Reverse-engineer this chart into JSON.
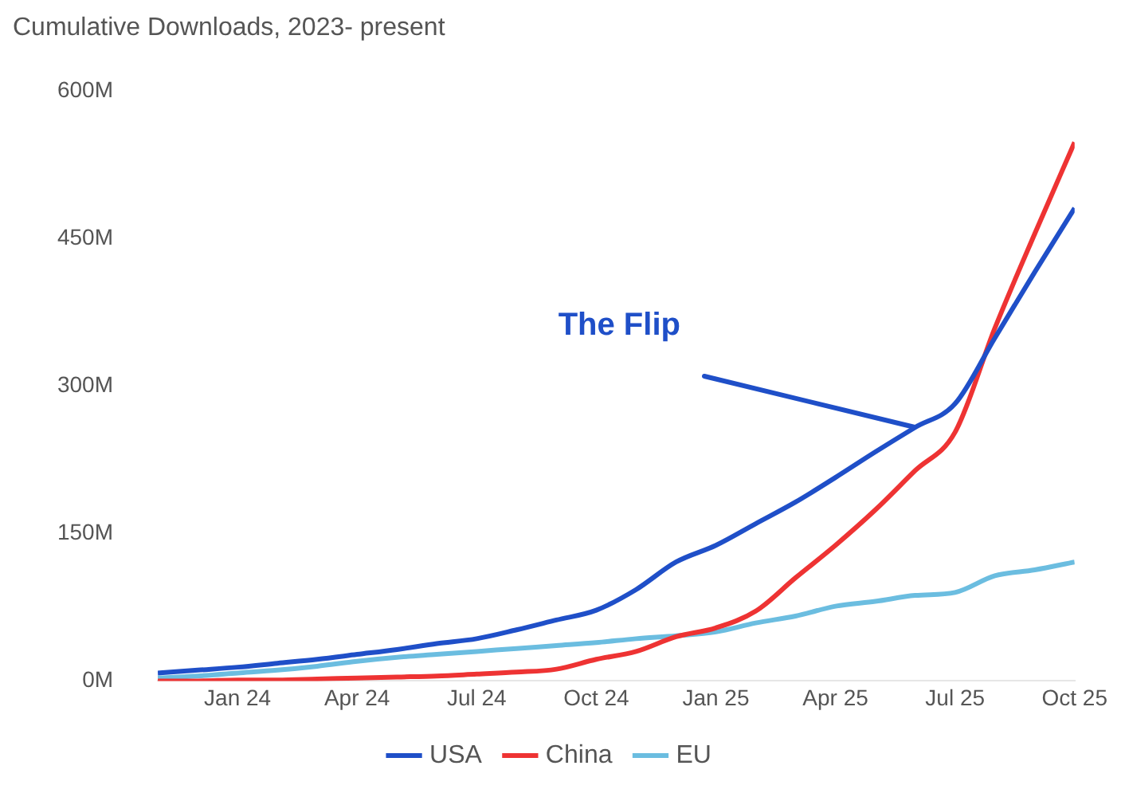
{
  "chart_data": {
    "type": "line",
    "title": "Cumulative Downloads, 2023- present",
    "x": [
      "2023-11",
      "2023-12",
      "2024-01",
      "2024-02",
      "2024-03",
      "2024-04",
      "2024-05",
      "2024-06",
      "2024-07",
      "2024-08",
      "2024-09",
      "2024-10",
      "2024-11",
      "2024-12",
      "2025-01",
      "2025-02",
      "2025-03",
      "2025-04",
      "2025-05",
      "2025-06",
      "2025-07",
      "2025-08",
      "2025-09",
      "2025-10"
    ],
    "series": [
      {
        "name": "USA",
        "color": "#1f4fc8",
        "values": [
          8,
          11,
          14,
          18,
          22,
          27,
          32,
          38,
          43,
          52,
          62,
          72,
          93,
          121,
          138,
          160,
          182,
          207,
          233,
          258,
          282,
          349,
          416,
          481
        ]
      },
      {
        "name": "China",
        "color": "#ee3333",
        "values": [
          0,
          0,
          1,
          1,
          2,
          3,
          4,
          5,
          7,
          9,
          12,
          22,
          30,
          45,
          54,
          71,
          105,
          138,
          174,
          214,
          253,
          359,
          455,
          548
        ]
      },
      {
        "name": "EU",
        "color": "#6bbde0",
        "values": [
          3,
          5,
          8,
          11,
          15,
          20,
          24,
          27,
          30,
          33,
          36,
          39,
          43,
          46,
          50,
          59,
          66,
          76,
          81,
          87,
          90,
          107,
          113,
          121
        ]
      }
    ],
    "xticks": [
      {
        "value": "2024-01",
        "label": "Jan 24"
      },
      {
        "value": "2024-04",
        "label": "Apr 24"
      },
      {
        "value": "2024-07",
        "label": "Jul 24"
      },
      {
        "value": "2024-10",
        "label": "Oct 24"
      },
      {
        "value": "2025-01",
        "label": "Jan 25"
      },
      {
        "value": "2025-04",
        "label": "Apr 25"
      },
      {
        "value": "2025-07",
        "label": "Jul 25"
      },
      {
        "value": "2025-10",
        "label": "Oct 25"
      }
    ],
    "xlim": [
      "2023-11",
      "2025-10"
    ],
    "ylim": [
      0,
      600
    ],
    "yticks": [
      {
        "value": 0,
        "label": "0M"
      },
      {
        "value": 150,
        "label": "150M"
      },
      {
        "value": 300,
        "label": "300M"
      },
      {
        "value": 450,
        "label": "450M"
      },
      {
        "value": 600,
        "label": "600M"
      }
    ],
    "annotations": [
      {
        "text": "The Flip",
        "x": "2025-06",
        "y": 258
      }
    ],
    "grid": false,
    "legend": "bottom",
    "marker": "none",
    "line_style": "solid"
  }
}
